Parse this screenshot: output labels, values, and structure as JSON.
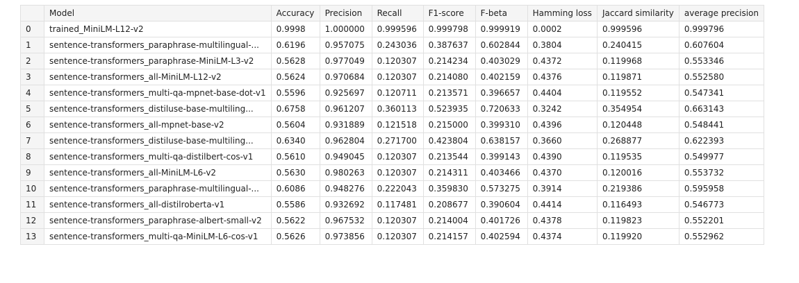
{
  "table": {
    "columns": [
      "",
      "Model",
      "Accuracy",
      "Precision",
      "Recall",
      "F1-score",
      "F-beta",
      "Hamming loss",
      "Jaccard similarity",
      "average precision"
    ],
    "rows": [
      [
        "0",
        "trained_MiniLM-L12-v2",
        "0.9998",
        "1.000000",
        "0.999596",
        "0.999798",
        "0.999919",
        "0.0002",
        "0.999596",
        "0.999796"
      ],
      [
        "1",
        "sentence-transformers_paraphrase-multilingual-...",
        "0.6196",
        "0.957075",
        "0.243036",
        "0.387637",
        "0.602844",
        "0.3804",
        "0.240415",
        "0.607604"
      ],
      [
        "2",
        "sentence-transformers_paraphrase-MiniLM-L3-v2",
        "0.5628",
        "0.977049",
        "0.120307",
        "0.214234",
        "0.403029",
        "0.4372",
        "0.119968",
        "0.553346"
      ],
      [
        "3",
        "sentence-transformers_all-MiniLM-L12-v2",
        "0.5624",
        "0.970684",
        "0.120307",
        "0.214080",
        "0.402159",
        "0.4376",
        "0.119871",
        "0.552580"
      ],
      [
        "4",
        "sentence-transformers_multi-qa-mpnet-base-dot-v1",
        "0.5596",
        "0.925697",
        "0.120711",
        "0.213571",
        "0.396657",
        "0.4404",
        "0.119552",
        "0.547341"
      ],
      [
        "5",
        "sentence-transformers_distiluse-base-multiling...",
        "0.6758",
        "0.961207",
        "0.360113",
        "0.523935",
        "0.720633",
        "0.3242",
        "0.354954",
        "0.663143"
      ],
      [
        "6",
        "sentence-transformers_all-mpnet-base-v2",
        "0.5604",
        "0.931889",
        "0.121518",
        "0.215000",
        "0.399310",
        "0.4396",
        "0.120448",
        "0.548441"
      ],
      [
        "7",
        "sentence-transformers_distiluse-base-multiling...",
        "0.6340",
        "0.962804",
        "0.271700",
        "0.423804",
        "0.638157",
        "0.3660",
        "0.268877",
        "0.622393"
      ],
      [
        "8",
        "sentence-transformers_multi-qa-distilbert-cos-v1",
        "0.5610",
        "0.949045",
        "0.120307",
        "0.213544",
        "0.399143",
        "0.4390",
        "0.119535",
        "0.549977"
      ],
      [
        "9",
        "sentence-transformers_all-MiniLM-L6-v2",
        "0.5630",
        "0.980263",
        "0.120307",
        "0.214311",
        "0.403466",
        "0.4370",
        "0.120016",
        "0.553732"
      ],
      [
        "10",
        "sentence-transformers_paraphrase-multilingual-...",
        "0.6086",
        "0.948276",
        "0.222043",
        "0.359830",
        "0.573275",
        "0.3914",
        "0.219386",
        "0.595958"
      ],
      [
        "11",
        "sentence-transformers_all-distilroberta-v1",
        "0.5586",
        "0.932692",
        "0.117481",
        "0.208677",
        "0.390604",
        "0.4414",
        "0.116493",
        "0.546773"
      ],
      [
        "12",
        "sentence-transformers_paraphrase-albert-small-v2",
        "0.5622",
        "0.967532",
        "0.120307",
        "0.214004",
        "0.401726",
        "0.4378",
        "0.119823",
        "0.552201"
      ],
      [
        "13",
        "sentence-transformers_multi-qa-MiniLM-L6-cos-v1",
        "0.5626",
        "0.973856",
        "0.120307",
        "0.214157",
        "0.402594",
        "0.4374",
        "0.119920",
        "0.552962"
      ]
    ]
  }
}
